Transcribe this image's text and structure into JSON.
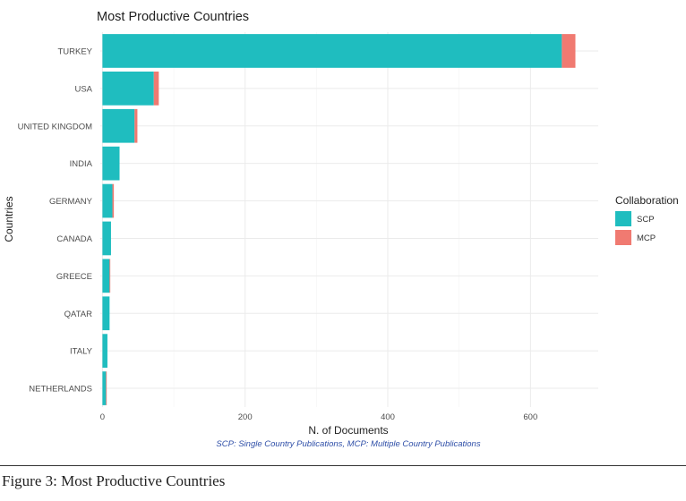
{
  "chart_data": {
    "type": "bar",
    "orientation": "horizontal",
    "stacked": true,
    "title": "Most Productive Countries",
    "xlabel": "N. of Documents",
    "ylabel": "Countries",
    "categories": [
      "TURKEY",
      "USA",
      "UNITED KINGDOM",
      "INDIA",
      "GERMANY",
      "CANADA",
      "GREECE",
      "QATAR",
      "ITALY",
      "NETHERLANDS"
    ],
    "series": [
      {
        "name": "SCP",
        "color": "#1fbdbf",
        "values": [
          644,
          72,
          45,
          24,
          14,
          12,
          10,
          10,
          7,
          5
        ]
      },
      {
        "name": "MCP",
        "color": "#f07a71",
        "values": [
          19,
          7,
          4,
          0,
          2,
          0,
          1,
          0,
          0,
          1
        ]
      }
    ],
    "xticks": [
      0,
      200,
      400,
      600
    ],
    "xlim": [
      -3,
      695
    ],
    "grid": true,
    "legend_title": "Collaboration",
    "legend_position": "right",
    "note": "SCP: Single Country Publications, MCP: Multiple Country Publications"
  },
  "figure_caption": "Figure 3: Most Productive Countries"
}
